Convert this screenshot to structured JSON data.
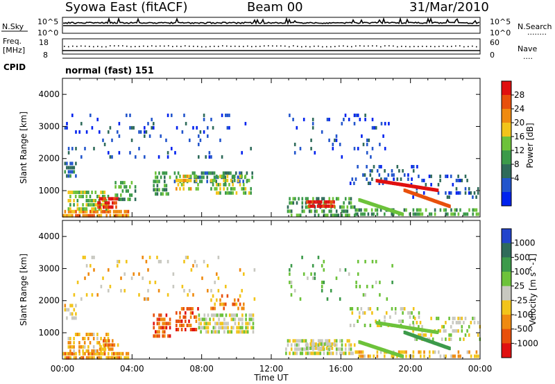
{
  "header": {
    "title": "Syowa East (fitACF)",
    "beam": "Beam 00",
    "date": "31/Mar/2010"
  },
  "status_panels": {
    "nsky_label": "N.Sky",
    "nsearch_label": "N.Search",
    "nsearch_legend": "........",
    "left_scale": [
      "10^5",
      "10^0"
    ],
    "right_scale": [
      "10^5",
      "10^0"
    ],
    "freq_label_line1": "Freq.",
    "freq_label_line2": "[MHz]",
    "freq_ticks": [
      "18",
      "8"
    ],
    "nave_label": "Nave",
    "nave_legend": "....",
    "nave_ticks": [
      "60",
      "0"
    ],
    "cpid_label": "CPID",
    "cpid_value": "normal (fast) 151"
  },
  "chart_data": [
    {
      "type": "heatmap",
      "name": "power",
      "xlabel": "Time UT",
      "ylabel": "Slant Range [km]",
      "xlim": [
        0,
        24
      ],
      "ylim": [
        180,
        4500
      ],
      "x_ticks": [
        "00:00",
        "04:00",
        "08:00",
        "12:00",
        "16:00",
        "20:00",
        "00:00"
      ],
      "y_ticks": [
        1000,
        2000,
        3000,
        4000
      ],
      "colorbar_label": "Power [dB]",
      "colorbar_ticks": [
        "28",
        "24",
        "20",
        "16",
        "12",
        "8",
        "4"
      ],
      "colors": [
        "#0022ee",
        "#2255cc",
        "#2f6b5a",
        "#3c9a4a",
        "#6dc23a",
        "#f2c41a",
        "#ef8a10",
        "#e8500c",
        "#e01010"
      ],
      "bands": [
        {
          "x": [
            0.0,
            3.8
          ],
          "y": [
            200,
            400
          ],
          "level": 6,
          "density": 0.85
        },
        {
          "x": [
            0.3,
            2.6
          ],
          "y": [
            400,
            1000
          ],
          "level": 4,
          "density": 0.55
        },
        {
          "x": [
            2.0,
            3.2
          ],
          "y": [
            500,
            800
          ],
          "level": 8,
          "density": 0.7
        },
        {
          "x": [
            0.1,
            0.8
          ],
          "y": [
            1400,
            1900
          ],
          "level": 2,
          "density": 0.5
        },
        {
          "x": [
            3.0,
            4.2
          ],
          "y": [
            700,
            1300
          ],
          "level": 3,
          "density": 0.5
        },
        {
          "x": [
            5.2,
            6.2
          ],
          "y": [
            900,
            1600
          ],
          "level": 3,
          "density": 0.55
        },
        {
          "x": [
            6.3,
            11.0
          ],
          "y": [
            1300,
            1600
          ],
          "level": 2,
          "density": 0.5
        },
        {
          "x": [
            6.5,
            7.8
          ],
          "y": [
            1000,
            1500
          ],
          "level": 5,
          "density": 0.55
        },
        {
          "x": [
            8.5,
            10.8
          ],
          "y": [
            900,
            1500
          ],
          "level": 4,
          "density": 0.5
        },
        {
          "x": [
            0.0,
            11.0
          ],
          "y": [
            2000,
            3400
          ],
          "level": 1,
          "density": 0.07
        },
        {
          "x": [
            12.8,
            16.8
          ],
          "y": [
            200,
            800
          ],
          "level": 3,
          "density": 0.35
        },
        {
          "x": [
            14.0,
            15.6
          ],
          "y": [
            500,
            700
          ],
          "level": 8,
          "density": 0.9
        },
        {
          "x": [
            13.0,
            19.0
          ],
          "y": [
            2000,
            3400
          ],
          "level": 1,
          "density": 0.08
        },
        {
          "x": [
            16.5,
            20.5
          ],
          "y": [
            1200,
            1800
          ],
          "level": 1,
          "density": 0.25
        },
        {
          "x": [
            16.8,
            23.9
          ],
          "y": [
            200,
            450
          ],
          "level": 3,
          "density": 0.45
        },
        {
          "x": [
            20.0,
            24.0
          ],
          "y": [
            800,
            1500
          ],
          "level": 1,
          "density": 0.25
        }
      ],
      "streaks": [
        {
          "x": [
            18.0,
            21.5
          ],
          "y": [
            1300,
            1000
          ],
          "level": 8
        },
        {
          "x": [
            19.6,
            22.2
          ],
          "y": [
            1000,
            500
          ],
          "level": 7
        },
        {
          "x": [
            17.0,
            19.5
          ],
          "y": [
            700,
            250
          ],
          "level": 4
        }
      ]
    },
    {
      "type": "heatmap",
      "name": "velocity",
      "xlabel": "Time UT",
      "ylabel": "Slant Range [km]",
      "xlim": [
        0,
        24
      ],
      "ylim": [
        180,
        4500
      ],
      "x_ticks": [
        "00:00",
        "04:00",
        "08:00",
        "12:00",
        "16:00",
        "20:00",
        "00:00"
      ],
      "y_ticks": [
        1000,
        2000,
        3000,
        4000
      ],
      "colorbar_label": "Velocity [m s^-1]",
      "colorbar_ticks": [
        "1000",
        "500",
        "100",
        "25",
        "-25",
        "-100",
        "-500",
        "-1000"
      ],
      "colors": [
        "#e01010",
        "#e8500c",
        "#ef8a10",
        "#f2c41a",
        "#c8c8c0",
        "#6dc23a",
        "#3c9a4a",
        "#2f6b5a",
        "#2244cc"
      ],
      "bands": [
        {
          "x": [
            0.0,
            3.8
          ],
          "y": [
            200,
            400
          ],
          "level": 2,
          "density": 0.85
        },
        {
          "x": [
            0.3,
            2.6
          ],
          "y": [
            400,
            1000
          ],
          "level": 3,
          "density": 0.55
        },
        {
          "x": [
            2.0,
            3.2
          ],
          "y": [
            500,
            800
          ],
          "level": 2,
          "density": 0.6
        },
        {
          "x": [
            0.1,
            0.8
          ],
          "y": [
            1400,
            1900
          ],
          "level": 3,
          "density": 0.5
        },
        {
          "x": [
            5.2,
            6.2
          ],
          "y": [
            900,
            1600
          ],
          "level": 1,
          "density": 0.55
        },
        {
          "x": [
            6.5,
            7.8
          ],
          "y": [
            1100,
            1800
          ],
          "level": 1,
          "density": 0.55
        },
        {
          "x": [
            7.8,
            11.0
          ],
          "y": [
            1000,
            1600
          ],
          "level": 4,
          "density": 0.65
        },
        {
          "x": [
            8.5,
            10.5
          ],
          "y": [
            1800,
            2200
          ],
          "level": 2,
          "density": 0.35
        },
        {
          "x": [
            0.0,
            11.0
          ],
          "y": [
            2000,
            3400
          ],
          "level": 3,
          "density": 0.06
        },
        {
          "x": [
            12.8,
            16.8
          ],
          "y": [
            300,
            800
          ],
          "level": 4,
          "density": 0.55
        },
        {
          "x": [
            14.0,
            15.6
          ],
          "y": [
            500,
            700
          ],
          "level": 4,
          "density": 0.9
        },
        {
          "x": [
            13.0,
            19.0
          ],
          "y": [
            2000,
            3400
          ],
          "level": 5,
          "density": 0.07
        },
        {
          "x": [
            16.5,
            20.5
          ],
          "y": [
            1200,
            1800
          ],
          "level": 4,
          "density": 0.25
        },
        {
          "x": [
            16.8,
            23.9
          ],
          "y": [
            200,
            450
          ],
          "level": 3,
          "density": 0.45
        },
        {
          "x": [
            20.0,
            24.0
          ],
          "y": [
            800,
            1500
          ],
          "level": 4,
          "density": 0.3
        }
      ],
      "streaks": [
        {
          "x": [
            18.0,
            21.5
          ],
          "y": [
            1300,
            1000
          ],
          "level": 5
        },
        {
          "x": [
            19.6,
            22.2
          ],
          "y": [
            1000,
            500
          ],
          "level": 6
        },
        {
          "x": [
            17.0,
            19.5
          ],
          "y": [
            700,
            250
          ],
          "level": 5
        }
      ]
    }
  ]
}
